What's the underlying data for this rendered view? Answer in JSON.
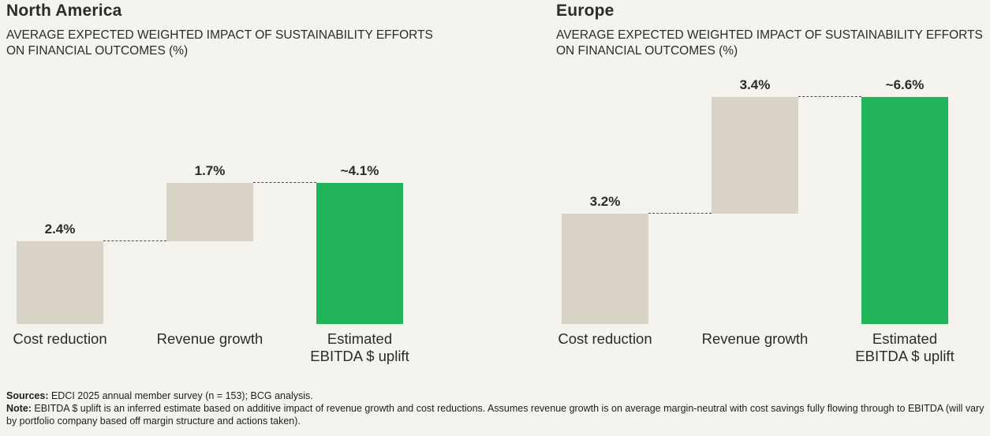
{
  "page": {
    "background": "#f5f3ee"
  },
  "colors": {
    "background": "#f5f3ee",
    "bar_beige": "#d8d2c7",
    "bar_green": "#21b459",
    "text": "#2c2b28",
    "dashed_line": "#4b4a47"
  },
  "chart_data": [
    {
      "type": "bar",
      "subtype": "waterfall",
      "title": "North America",
      "subtitle": "AVERAGE EXPECTED WEIGHTED IMPACT OF SUSTAINABILITY EFFORTS ON FINANCIAL OUTCOMES (%)",
      "categories": [
        "Cost reduction",
        "Revenue growth",
        "Estimated\nEBITDA $ uplift"
      ],
      "values": [
        2.4,
        1.7,
        4.1
      ],
      "value_labels": [
        "2.4%",
        "1.7%",
        "~4.1%"
      ],
      "is_total": [
        false,
        false,
        true
      ],
      "bar_colors": [
        "#d8d2c7",
        "#d8d2c7",
        "#21b459"
      ],
      "ylim": [
        0,
        7
      ],
      "grid": false,
      "legend": false,
      "axes_visible": false,
      "connector_style": "dashed"
    },
    {
      "type": "bar",
      "subtype": "waterfall",
      "title": "Europe",
      "subtitle": "AVERAGE EXPECTED WEIGHTED IMPACT OF SUSTAINABILITY EFFORTS ON FINANCIAL OUTCOMES (%)",
      "categories": [
        "Cost reduction",
        "Revenue growth",
        "Estimated\nEBITDA $ uplift"
      ],
      "values": [
        3.2,
        3.4,
        6.6
      ],
      "value_labels": [
        "3.2%",
        "3.4%",
        "~6.6%"
      ],
      "is_total": [
        false,
        false,
        true
      ],
      "bar_colors": [
        "#d8d2c7",
        "#d8d2c7",
        "#21b459"
      ],
      "ylim": [
        0,
        7
      ],
      "grid": false,
      "legend": false,
      "axes_visible": false,
      "connector_style": "dashed"
    }
  ],
  "footer": {
    "sources_label": "Sources:",
    "sources_text": " EDCI 2025 annual member survey (n = 153); BCG analysis.",
    "note_label": "Note:",
    "note_text": " EBITDA $ uplift is an inferred estimate based on additive impact of revenue growth and cost reductions. Assumes revenue growth is on average margin-neutral with cost savings fully flowing through to EBITDA (will vary by portfolio company based off margin structure and actions taken)."
  }
}
